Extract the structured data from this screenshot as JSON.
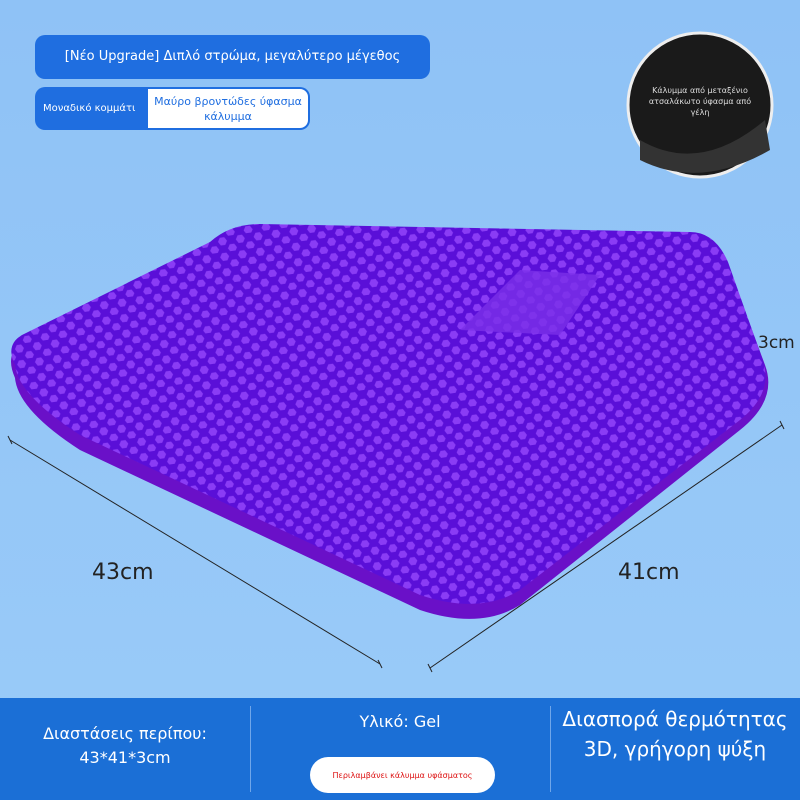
{
  "header": {
    "title": "[Νέο Upgrade] Διπλό στρώμα, μεγαλύτερο μέγεθος",
    "tag": "Μοναδικό κομμάτι",
    "option": "Μαύρο βροντώδες ύφασμα κάλυμμα"
  },
  "inset": {
    "caption": "Κάλυμμα από μεταξένιο ατσαλάκωτο ύφασμα από γέλη"
  },
  "dimensions": {
    "height": "3cm",
    "length": "43cm",
    "width": "41cm"
  },
  "footer": {
    "size": "Διαστάσεις περίπου: 43*41*3cm",
    "material": "Υλικό: Gel",
    "includes": "Περιλαμβάνει κάλυμμα υφάσματος",
    "feature": "Διασπορά θερμότητας 3D, γρήγορη ψύξη"
  }
}
